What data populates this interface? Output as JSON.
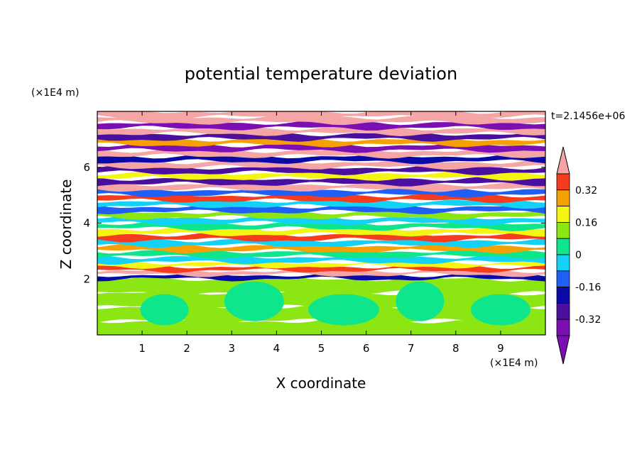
{
  "chart_data": {
    "type": "heatmap",
    "title": "potential temperature deviation",
    "xlabel": "X coordinate",
    "ylabel": "Z coordinate",
    "x_unit": "(×1E4 m)",
    "y_unit": "(×1E4 m)",
    "time_label": "t=2.1456e+06",
    "xlim": [
      0,
      10
    ],
    "ylim": [
      0,
      8
    ],
    "x_ticks": [
      1,
      2,
      3,
      4,
      5,
      6,
      7,
      8,
      9
    ],
    "x_tick_labels": [
      "1",
      "2",
      "3",
      "4",
      "5",
      "6",
      "7",
      "8",
      "9"
    ],
    "y_ticks": [
      2,
      4,
      6
    ],
    "y_tick_labels": [
      "2",
      "4",
      "6"
    ],
    "colorbar": {
      "levels": [
        -0.4,
        -0.32,
        -0.24,
        -0.16,
        -0.08,
        0,
        0.08,
        0.16,
        0.24,
        0.32,
        0.4
      ],
      "tick_values": [
        -0.32,
        -0.16,
        0,
        0.16,
        0.32
      ],
      "tick_labels": [
        "-0.32",
        "-0.16",
        "0",
        "0.16",
        "0.32"
      ],
      "colors": [
        "#7b0fb4",
        "#4a0f9e",
        "#0a0aa8",
        "#1f5ff5",
        "#14d2f5",
        "#0fe68c",
        "#8ce614",
        "#f5f514",
        "#f5a005",
        "#f53c1e",
        "#f5a5a5"
      ],
      "extend": "both"
    },
    "bottom_layer_bands": [
      {
        "z_min": 0.0,
        "z_max": 0.5,
        "value": 0.02
      },
      {
        "z_min": 0.5,
        "z_max": 1.0,
        "value": 0.04
      },
      {
        "z_min": 1.0,
        "z_max": 1.5,
        "value": 0.03
      },
      {
        "z_min": 1.5,
        "z_max": 2.0,
        "value": 0.05
      }
    ],
    "upper_layer_bands": [
      {
        "z_min": 2.0,
        "z_max": 2.15,
        "value": -0.26
      },
      {
        "z_min": 2.15,
        "z_max": 2.3,
        "value": 0.44
      },
      {
        "z_min": 2.3,
        "z_max": 2.45,
        "value": 0.28
      },
      {
        "z_min": 2.45,
        "z_max": 2.6,
        "value": 0.12
      },
      {
        "z_min": 2.6,
        "z_max": 2.8,
        "value": -0.12
      },
      {
        "z_min": 2.8,
        "z_max": 3.0,
        "value": -0.04
      },
      {
        "z_min": 3.0,
        "z_max": 3.2,
        "value": 0.2
      },
      {
        "z_min": 3.2,
        "z_max": 3.4,
        "value": -0.1
      },
      {
        "z_min": 3.4,
        "z_max": 3.6,
        "value": 0.3
      },
      {
        "z_min": 3.6,
        "z_max": 3.8,
        "value": 0.14
      },
      {
        "z_min": 3.8,
        "z_max": 4.0,
        "value": -0.06
      },
      {
        "z_min": 4.0,
        "z_max": 4.2,
        "value": -0.11
      },
      {
        "z_min": 4.2,
        "z_max": 4.4,
        "value": 0.06
      },
      {
        "z_min": 4.4,
        "z_max": 4.6,
        "value": -0.18
      },
      {
        "z_min": 4.6,
        "z_max": 4.8,
        "value": -0.14
      },
      {
        "z_min": 4.8,
        "z_max": 5.0,
        "value": 0.26
      },
      {
        "z_min": 5.0,
        "z_max": 5.2,
        "value": -0.22
      },
      {
        "z_min": 5.2,
        "z_max": 5.4,
        "value": 0.45
      },
      {
        "z_min": 5.4,
        "z_max": 5.6,
        "value": -0.36
      },
      {
        "z_min": 5.6,
        "z_max": 5.8,
        "value": 0.1
      },
      {
        "z_min": 5.8,
        "z_max": 6.0,
        "value": -0.38
      },
      {
        "z_min": 6.0,
        "z_max": 6.2,
        "value": 0.38
      },
      {
        "z_min": 6.2,
        "z_max": 6.4,
        "value": -0.3
      },
      {
        "z_min": 6.4,
        "z_max": 6.6,
        "value": 0.45
      },
      {
        "z_min": 6.6,
        "z_max": 6.8,
        "value": -0.42
      },
      {
        "z_min": 6.8,
        "z_max": 7.0,
        "value": 0.2
      },
      {
        "z_min": 7.0,
        "z_max": 7.2,
        "value": -0.34
      },
      {
        "z_min": 7.2,
        "z_max": 7.4,
        "value": 0.45
      },
      {
        "z_min": 7.4,
        "z_max": 7.6,
        "value": -0.44
      },
      {
        "z_min": 7.6,
        "z_max": 7.8,
        "value": 0.42
      },
      {
        "z_min": 7.8,
        "z_max": 8.0,
        "value": 0.4
      }
    ]
  }
}
